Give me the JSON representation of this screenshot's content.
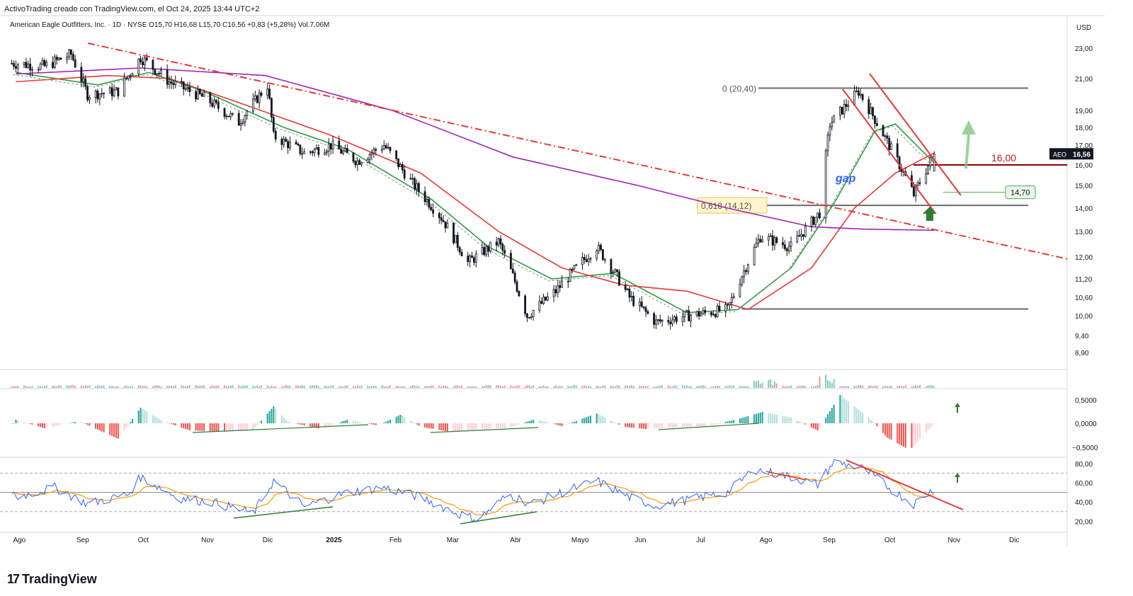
{
  "header": {
    "credit": "ActivoTrading creado con TradingView.com, el Oct 24, 2025 13:44 UTC+2"
  },
  "legend": {
    "text": "American Eagle Outfitters, Inc. · 1D · NYSE  O15,70  H16,68  L15,70  C16,56  +0,83 (+5,28%)  Vol.7,06M"
  },
  "brand": {
    "logo": "17",
    "name": "TradingView"
  },
  "colors": {
    "up": "#131722",
    "down": "#131722",
    "sma_fast": "#2e9e3e",
    "sma_mid": "#e53935",
    "sma_slow": "#9c27b0",
    "trend": "#e53935",
    "fib": "#6b6b6b",
    "hist_up": "#26a69a",
    "hist_up_light": "#b2dfdb",
    "hist_down": "#ef5350",
    "hist_down_light": "#ffcdd2",
    "rsi": "#2962ff",
    "rsi_ma": "#ff9800",
    "price_tag": "#131722",
    "level16": "#8b0000"
  },
  "chart_data": [
    {
      "type": "candlestick",
      "title": "American Eagle Outfitters, Inc.",
      "currency": "USD",
      "y_axis_ticks": [
        "23,00",
        "21,00",
        "19,00",
        "18,00",
        "17,00",
        "16,00",
        "15,00",
        "14,00",
        "13,00",
        "12,00",
        "11,20",
        "10,60",
        "10,00",
        "9,40",
        "8,90"
      ],
      "x_axis_labels": [
        "Ago",
        "Sep",
        "Oct",
        "Nov",
        "Dic",
        "2025",
        "Feb",
        "Mar",
        "Abr",
        "Mayo",
        "Jun",
        "Jul",
        "Ago",
        "Sep",
        "Oct",
        "Nov",
        "Dic"
      ],
      "close_path": [
        {
          "x": "2024-08-01",
          "y": 22.0
        },
        {
          "x": "2024-08-15",
          "y": 21.8
        },
        {
          "x": "2024-08-28",
          "y": 22.6
        },
        {
          "x": "2024-09-05",
          "y": 20.0
        },
        {
          "x": "2024-09-20",
          "y": 20.2
        },
        {
          "x": "2024-10-01",
          "y": 22.4
        },
        {
          "x": "2024-10-15",
          "y": 20.8
        },
        {
          "x": "2024-11-01",
          "y": 19.8
        },
        {
          "x": "2024-11-18",
          "y": 18.3
        },
        {
          "x": "2024-12-02",
          "y": 20.6
        },
        {
          "x": "2024-12-05",
          "y": 17.5
        },
        {
          "x": "2024-12-20",
          "y": 16.6
        },
        {
          "x": "2025-01-02",
          "y": 17.0
        },
        {
          "x": "2025-01-15",
          "y": 16.2
        },
        {
          "x": "2025-01-28",
          "y": 17.0
        },
        {
          "x": "2025-02-10",
          "y": 15.2
        },
        {
          "x": "2025-02-25",
          "y": 13.6
        },
        {
          "x": "2025-03-10",
          "y": 11.8
        },
        {
          "x": "2025-03-25",
          "y": 12.6
        },
        {
          "x": "2025-04-08",
          "y": 10.0
        },
        {
          "x": "2025-04-22",
          "y": 10.8
        },
        {
          "x": "2025-05-12",
          "y": 12.4
        },
        {
          "x": "2025-05-28",
          "y": 10.6
        },
        {
          "x": "2025-06-10",
          "y": 9.8
        },
        {
          "x": "2025-06-25",
          "y": 10.0
        },
        {
          "x": "2025-07-15",
          "y": 10.2
        },
        {
          "x": "2025-07-31",
          "y": 12.8
        },
        {
          "x": "2025-08-15",
          "y": 12.4
        },
        {
          "x": "2025-08-29",
          "y": 13.8
        },
        {
          "x": "2025-09-03",
          "y": 18.2
        },
        {
          "x": "2025-09-17",
          "y": 20.2
        },
        {
          "x": "2025-10-01",
          "y": 17.2
        },
        {
          "x": "2025-10-14",
          "y": 14.6
        },
        {
          "x": "2025-10-24",
          "y": 16.56
        }
      ],
      "moving_averages": [
        {
          "name": "fast",
          "color": "green",
          "points": [
            {
              "x": "2024-08-01",
              "y": 21.4
            },
            {
              "x": "2024-09-10",
              "y": 20.6
            },
            {
              "x": "2024-10-05",
              "y": 21.4
            },
            {
              "x": "2024-11-01",
              "y": 20.2
            },
            {
              "x": "2024-12-10",
              "y": 18.0
            },
            {
              "x": "2025-01-10",
              "y": 16.8
            },
            {
              "x": "2025-02-20",
              "y": 14.4
            },
            {
              "x": "2025-03-20",
              "y": 12.4
            },
            {
              "x": "2025-04-20",
              "y": 11.2
            },
            {
              "x": "2025-05-20",
              "y": 11.4
            },
            {
              "x": "2025-06-25",
              "y": 10.1
            },
            {
              "x": "2025-07-20",
              "y": 10.2
            },
            {
              "x": "2025-08-15",
              "y": 11.6
            },
            {
              "x": "2025-09-05",
              "y": 14.2
            },
            {
              "x": "2025-09-25",
              "y": 17.8
            },
            {
              "x": "2025-10-05",
              "y": 18.2
            },
            {
              "x": "2025-10-24",
              "y": 16.1
            }
          ]
        },
        {
          "name": "mid",
          "color": "red",
          "points": [
            {
              "x": "2024-08-01",
              "y": 20.8
            },
            {
              "x": "2024-09-15",
              "y": 21.2
            },
            {
              "x": "2024-10-15",
              "y": 21.0
            },
            {
              "x": "2024-11-20",
              "y": 19.4
            },
            {
              "x": "2025-01-01",
              "y": 17.6
            },
            {
              "x": "2025-02-15",
              "y": 15.6
            },
            {
              "x": "2025-03-25",
              "y": 13.0
            },
            {
              "x": "2025-04-25",
              "y": 11.6
            },
            {
              "x": "2025-05-25",
              "y": 11.0
            },
            {
              "x": "2025-06-25",
              "y": 10.8
            },
            {
              "x": "2025-07-25",
              "y": 10.2
            },
            {
              "x": "2025-08-25",
              "y": 11.6
            },
            {
              "x": "2025-09-15",
              "y": 14.0
            },
            {
              "x": "2025-10-05",
              "y": 15.6
            },
            {
              "x": "2025-10-24",
              "y": 16.6
            }
          ]
        },
        {
          "name": "slow",
          "color": "purple",
          "points": [
            {
              "x": "2024-08-01",
              "y": 21.3
            },
            {
              "x": "2024-10-01",
              "y": 21.7
            },
            {
              "x": "2024-12-01",
              "y": 21.2
            },
            {
              "x": "2025-02-01",
              "y": 19.0
            },
            {
              "x": "2025-04-01",
              "y": 16.4
            },
            {
              "x": "2025-06-01",
              "y": 15.0
            },
            {
              "x": "2025-07-15",
              "y": 14.0
            },
            {
              "x": "2025-08-25",
              "y": 13.2
            },
            {
              "x": "2025-09-20",
              "y": 13.1
            },
            {
              "x": "2025-10-24",
              "y": 13.05
            }
          ]
        }
      ],
      "levels": [
        {
          "label": "0 (20,40)",
          "y": 20.4
        },
        {
          "label": "0,618 (14,12)",
          "y": 14.12
        },
        {
          "label": "",
          "y": 10.22
        },
        {
          "label": "16,00",
          "y": 16.0
        },
        {
          "label": "14,70",
          "y": 14.7
        }
      ],
      "annotations": [
        "gap"
      ],
      "last_price": {
        "symbol": "AEO",
        "value": "16,56"
      }
    },
    {
      "type": "bar",
      "name": "volume",
      "values_note": "small uniform bars with spikes in Aug and early Sep 2025"
    },
    {
      "type": "bar",
      "name": "histogram oscillator",
      "y_axis_ticks": [
        "0,5000",
        "0,0000",
        "−0,5000"
      ]
    },
    {
      "type": "line",
      "name": "RSI",
      "y_axis_ticks": [
        "80,00",
        "60,00",
        "40,00",
        "20,00"
      ],
      "levels": [
        70,
        50,
        30
      ]
    }
  ]
}
